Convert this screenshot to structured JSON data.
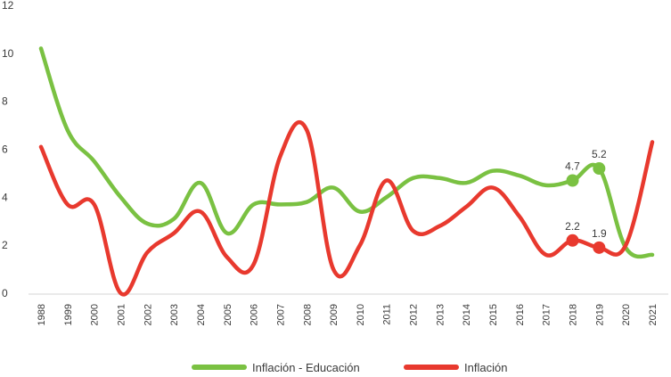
{
  "chart_data": {
    "type": "line",
    "categories": [
      "1988",
      "1999",
      "2000",
      "2001",
      "2002",
      "2003",
      "2004",
      "2005",
      "2006",
      "2007",
      "2008",
      "2009",
      "2010",
      "2011",
      "2012",
      "2013",
      "2014",
      "2015",
      "2016",
      "2017",
      "2018",
      "2019",
      "2020",
      "2021"
    ],
    "ylim": [
      0,
      12
    ],
    "yticks": [
      "0",
      "2",
      "4",
      "6",
      "8",
      "10",
      "12"
    ],
    "grid": false,
    "legend_position": "bottom",
    "series": [
      {
        "name": "Inflación - Educación",
        "color": "#7ac142",
        "values": [
          10.2,
          6.8,
          5.5,
          4.0,
          2.9,
          3.1,
          4.6,
          2.5,
          3.7,
          3.7,
          3.8,
          4.4,
          3.4,
          4.0,
          4.8,
          4.8,
          4.6,
          5.1,
          4.9,
          4.5,
          4.7,
          5.2,
          1.9,
          1.6
        ]
      },
      {
        "name": "Inflación",
        "color": "#e8392e",
        "values": [
          6.1,
          3.7,
          3.7,
          0.0,
          1.7,
          2.5,
          3.4,
          1.5,
          1.2,
          5.7,
          6.8,
          1.0,
          2.0,
          4.7,
          2.6,
          2.8,
          3.6,
          4.4,
          3.2,
          1.6,
          2.2,
          1.9,
          2.0,
          6.3
        ]
      }
    ],
    "annotations": [
      {
        "series": 0,
        "index": 20,
        "label": "4.7"
      },
      {
        "series": 0,
        "index": 21,
        "label": "5.2"
      },
      {
        "series": 1,
        "index": 20,
        "label": "2.2"
      },
      {
        "series": 1,
        "index": 21,
        "label": "1.9"
      }
    ]
  }
}
